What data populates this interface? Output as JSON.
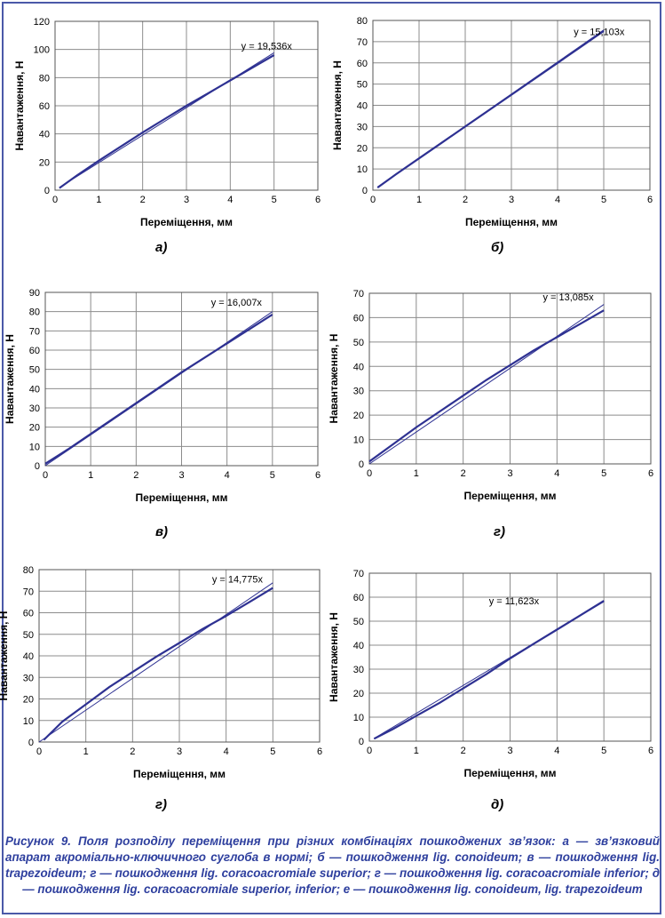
{
  "figure": {
    "caption": "Рисунок 9. Поля розподілу переміщення при різних комбінаціях пошкоджених зв’язок: а — зв’язковий апарат акроміально-ключичного суглоба в нормі; б — пошкодження lig. conoideum; в — пошкодження lig. trapezoideum; г — пошкодження lig. coracoacromiale superior; г — пошкодження lig. coracoacromiale inferior; д — пошкодження lig. coracoacromiale superior, inferior; е — пошкодження lig. conoideum, lig. trapezoideum"
  },
  "colors": {
    "data_line": "#2e3192",
    "trend_line": "#2e3192",
    "grid": "#8c8c8c",
    "caption": "#2e3f9e",
    "frame": "#4a59a8"
  },
  "chart_data": [
    {
      "panel": "а)",
      "type": "line",
      "xlabel": "Переміщення, мм",
      "ylabel": "Навантаження, Н",
      "xlim": [
        0,
        6
      ],
      "ylim": [
        0,
        120
      ],
      "xticks": [
        0,
        1,
        2,
        3,
        4,
        5,
        6
      ],
      "yticks": [
        0,
        20,
        40,
        60,
        80,
        100,
        120
      ],
      "grid": true,
      "equation": "y = 19,536x",
      "series": [
        {
          "x": [
            0.1,
            0.5,
            1,
            1.5,
            2,
            2.5,
            3,
            3.5,
            4,
            4.5,
            5
          ],
          "y": [
            1.5,
            10.5,
            21,
            31,
            41,
            50.5,
            60,
            69,
            78,
            87,
            96
          ]
        },
        {
          "x": [
            0.1,
            5
          ],
          "y": [
            1.95,
            97.7
          ]
        }
      ]
    },
    {
      "panel": "б)",
      "type": "line",
      "xlabel": "Переміщення, мм",
      "ylabel": "Навантаження, Н",
      "xlim": [
        0,
        6
      ],
      "ylim": [
        0,
        80
      ],
      "xticks": [
        0,
        1,
        2,
        3,
        4,
        5,
        6
      ],
      "yticks": [
        0,
        10,
        20,
        30,
        40,
        50,
        60,
        70,
        80
      ],
      "grid": true,
      "equation": "y = 15,103x",
      "series": [
        {
          "x": [
            0.1,
            0.5,
            1,
            1.5,
            2,
            2.5,
            3,
            3.5,
            4,
            4.5,
            5
          ],
          "y": [
            1.2,
            7.5,
            15,
            22.5,
            30,
            37.5,
            45,
            52.5,
            60,
            67.5,
            75
          ]
        },
        {
          "x": [
            0.1,
            5
          ],
          "y": [
            1.51,
            75.5
          ]
        }
      ]
    },
    {
      "panel": "в)",
      "type": "line",
      "xlabel": "Переміщення, мм",
      "ylabel": "Навантаження, Н",
      "xlim": [
        0,
        6
      ],
      "ylim": [
        0,
        90
      ],
      "xticks": [
        0,
        1,
        2,
        3,
        4,
        5,
        6
      ],
      "yticks": [
        0,
        10,
        20,
        30,
        40,
        50,
        60,
        70,
        80,
        90
      ],
      "grid": true,
      "equation": "y = 16,007x",
      "series": [
        {
          "x": [
            0,
            0.5,
            1,
            1.5,
            2,
            2.5,
            3,
            3.5,
            4,
            4.5,
            5
          ],
          "y": [
            1,
            8.5,
            16.5,
            24.5,
            32.5,
            40.5,
            48.5,
            56,
            63.5,
            71,
            78.5
          ]
        },
        {
          "x": [
            0,
            5
          ],
          "y": [
            0,
            80
          ]
        }
      ]
    },
    {
      "panel": "г)",
      "type": "line",
      "xlabel": "Переміщення, мм",
      "ylabel": "Навантаження, Н",
      "xlim": [
        0,
        6
      ],
      "ylim": [
        0,
        70
      ],
      "xticks": [
        0,
        1,
        2,
        3,
        4,
        5,
        6
      ],
      "yticks": [
        0,
        10,
        20,
        30,
        40,
        50,
        60,
        70
      ],
      "grid": true,
      "equation": "y = 13,085x",
      "series": [
        {
          "x": [
            0,
            0.5,
            1,
            1.5,
            2,
            2.5,
            3,
            3.5,
            4,
            4.5,
            5
          ],
          "y": [
            1,
            8,
            15,
            21.5,
            28,
            34.5,
            40.5,
            46.5,
            52,
            57.5,
            63
          ]
        },
        {
          "x": [
            0,
            5
          ],
          "y": [
            0,
            65.4
          ]
        }
      ]
    },
    {
      "panel": "г)",
      "type": "line",
      "xlabel": "Переміщення, мм",
      "ylabel": "Навантаження, Н",
      "xlim": [
        0,
        6
      ],
      "ylim": [
        0,
        80
      ],
      "xticks": [
        0,
        1,
        2,
        3,
        4,
        5,
        6
      ],
      "yticks": [
        0,
        10,
        20,
        30,
        40,
        50,
        60,
        70,
        80
      ],
      "grid": true,
      "equation": "y = 14,775x",
      "series": [
        {
          "x": [
            0.1,
            0.5,
            1,
            1.5,
            2,
            2.5,
            3,
            3.5,
            4,
            4.5,
            5
          ],
          "y": [
            1,
            9.5,
            17.5,
            25.5,
            32.5,
            39.5,
            46,
            52.5,
            58.5,
            65,
            71.5
          ]
        },
        {
          "x": [
            0,
            5
          ],
          "y": [
            0,
            73.9
          ]
        }
      ]
    },
    {
      "panel": "д)",
      "type": "line",
      "xlabel": "Переміщення, мм",
      "ylabel": "Навантаження, Н",
      "xlim": [
        0,
        6
      ],
      "ylim": [
        0,
        70
      ],
      "xticks": [
        0,
        1,
        2,
        3,
        4,
        5,
        6
      ],
      "yticks": [
        0,
        10,
        20,
        30,
        40,
        50,
        60,
        70
      ],
      "grid": true,
      "equation": "y = 11,623x",
      "series": [
        {
          "x": [
            0.1,
            0.5,
            1,
            1.5,
            2,
            2.5,
            3,
            3.5,
            4,
            4.5,
            5
          ],
          "y": [
            1,
            5,
            10.5,
            16,
            22,
            28,
            34.5,
            40.5,
            46.5,
            52.5,
            58.5
          ]
        },
        {
          "x": [
            0.1,
            5
          ],
          "y": [
            1.16,
            58.1
          ]
        }
      ]
    }
  ]
}
